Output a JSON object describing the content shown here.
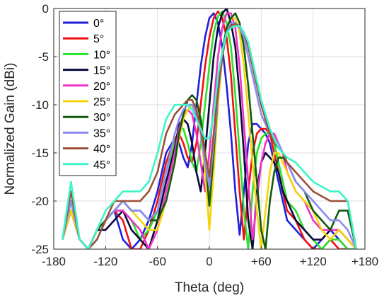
{
  "chart_data": {
    "type": "line",
    "xlabel": "Theta (deg)",
    "ylabel": "Normalized Gain (dBi)",
    "xlim": [
      -180,
      180
    ],
    "ylim": [
      -25,
      0
    ],
    "x_ticks": [
      {
        "value": -180,
        "label": "-180"
      },
      {
        "value": -120,
        "label": "-120"
      },
      {
        "value": -60,
        "label": "-60"
      },
      {
        "value": 0,
        "label": "0"
      },
      {
        "value": 60,
        "label": "+60"
      },
      {
        "value": 120,
        "label": "+120"
      },
      {
        "value": 180,
        "label": "+180"
      }
    ],
    "y_ticks": [
      {
        "value": 0,
        "label": "0"
      },
      {
        "value": -5,
        "label": "-5"
      },
      {
        "value": -10,
        "label": "-10"
      },
      {
        "value": -15,
        "label": "-15"
      },
      {
        "value": -20,
        "label": "-20"
      },
      {
        "value": -25,
        "label": "-25"
      }
    ],
    "grid": true,
    "legend_position": "top-left",
    "series": [
      {
        "name": "0°",
        "color": "#1f1fdc",
        "x": [
          -170,
          -160,
          -150,
          -140,
          -130,
          -120,
          -110,
          -100,
          -90,
          -80,
          -70,
          -60,
          -50,
          -40,
          -35,
          -30,
          -25,
          -20,
          -15,
          -10,
          -5,
          0,
          5,
          10,
          15,
          20,
          25,
          30,
          35,
          40,
          45,
          50,
          55,
          60,
          65,
          70,
          75,
          80,
          85,
          90,
          100,
          110,
          120,
          130,
          140,
          150,
          160,
          170
        ],
        "y": [
          -24,
          -21,
          -24,
          -25,
          -23,
          -22,
          -21,
          -24,
          -25,
          -24,
          -22,
          -19,
          -15,
          -13.5,
          -14,
          -15.5,
          -16.5,
          -14,
          -10,
          -6,
          -3,
          -1,
          -0.5,
          -1.5,
          -4,
          -8,
          -13,
          -19,
          -23.5,
          -19,
          -14,
          -12,
          -12,
          -12.5,
          -13,
          -14,
          -16,
          -18,
          -20,
          -22,
          -23,
          -24,
          -25,
          -24,
          -23,
          -24,
          -25,
          -25
        ]
      },
      {
        "name": "5°",
        "color": "#f01010",
        "x": [
          -170,
          -160,
          -150,
          -140,
          -130,
          -120,
          -110,
          -100,
          -90,
          -80,
          -70,
          -60,
          -50,
          -40,
          -35,
          -30,
          -25,
          -20,
          -15,
          -10,
          -5,
          0,
          5,
          10,
          15,
          20,
          25,
          30,
          35,
          40,
          45,
          50,
          55,
          60,
          65,
          70,
          75,
          80,
          85,
          90,
          100,
          110,
          120,
          130,
          140,
          150,
          160,
          170
        ],
        "y": [
          -24,
          -21,
          -24,
          -25,
          -23,
          -22,
          -21,
          -22,
          -25,
          -25,
          -23,
          -20,
          -16,
          -13.5,
          -13,
          -14,
          -15.5,
          -16,
          -14,
          -10,
          -6,
          -3,
          -1,
          -0.3,
          -1,
          -3,
          -7,
          -13,
          -19,
          -24,
          -19,
          -15,
          -13,
          -12.5,
          -12.5,
          -13,
          -15,
          -17,
          -19,
          -21,
          -22,
          -24,
          -25,
          -25,
          -24,
          -25,
          -25,
          -25
        ]
      },
      {
        "name": "10°",
        "color": "#2ce02c",
        "x": [
          -170,
          -160,
          -150,
          -140,
          -130,
          -120,
          -110,
          -100,
          -90,
          -80,
          -70,
          -60,
          -50,
          -40,
          -35,
          -30,
          -25,
          -20,
          -15,
          -10,
          -5,
          0,
          5,
          10,
          15,
          20,
          25,
          30,
          35,
          40,
          45,
          50,
          55,
          60,
          65,
          70,
          75,
          80,
          85,
          90,
          100,
          110,
          120,
          130,
          140,
          150,
          160,
          170
        ],
        "y": [
          -24,
          -21,
          -24,
          -25,
          -23,
          -22,
          -21,
          -21,
          -22,
          -24,
          -23,
          -21,
          -17,
          -14,
          -12.5,
          -12.5,
          -14,
          -16,
          -17,
          -14,
          -10,
          -6,
          -2.5,
          -0.8,
          -0.3,
          -1.5,
          -4,
          -9,
          -15,
          -21,
          -25,
          -19,
          -15,
          -13.5,
          -13,
          -13,
          -14,
          -16,
          -18,
          -20,
          -21,
          -23,
          -24,
          -25,
          -24,
          -24,
          -25,
          -25
        ]
      },
      {
        "name": "15°",
        "color": "#0a0a3c",
        "x": [
          -170,
          -160,
          -150,
          -140,
          -130,
          -120,
          -110,
          -100,
          -90,
          -80,
          -70,
          -60,
          -50,
          -40,
          -35,
          -30,
          -25,
          -20,
          -15,
          -10,
          -5,
          0,
          5,
          10,
          15,
          20,
          25,
          30,
          35,
          40,
          45,
          50,
          55,
          60,
          65,
          70,
          75,
          80,
          85,
          90,
          100,
          110,
          120,
          130,
          140,
          150,
          160,
          170
        ],
        "y": [
          -24,
          -21,
          -24,
          -25,
          -23,
          -23,
          -22,
          -21,
          -23,
          -24,
          -25,
          -22,
          -18,
          -14.5,
          -12,
          -11.5,
          -12,
          -14,
          -17,
          -19,
          -15,
          -10,
          -5,
          -2,
          -0.5,
          0,
          -1.5,
          -4,
          -9,
          -15,
          -22,
          -25,
          -19,
          -16,
          -15,
          -15.5,
          -16,
          -17,
          -19,
          -20,
          -22,
          -23,
          -24,
          -24,
          -23,
          -23,
          -24,
          -25
        ]
      },
      {
        "name": "20°",
        "color": "#f032c8",
        "x": [
          -170,
          -160,
          -150,
          -140,
          -130,
          -120,
          -110,
          -100,
          -90,
          -80,
          -70,
          -60,
          -50,
          -40,
          -35,
          -30,
          -25,
          -20,
          -15,
          -10,
          -5,
          0,
          5,
          10,
          15,
          20,
          25,
          30,
          35,
          40,
          45,
          50,
          55,
          60,
          65,
          70,
          75,
          80,
          85,
          90,
          100,
          110,
          120,
          130,
          140,
          150,
          160,
          170
        ],
        "y": [
          -24,
          -21,
          -24,
          -25,
          -23,
          -22,
          -21,
          -21,
          -22,
          -23,
          -25,
          -23,
          -19,
          -15,
          -12.5,
          -11,
          -10.5,
          -11,
          -13,
          -16,
          -19,
          -15,
          -10,
          -5,
          -2,
          -0.5,
          -0.5,
          -2,
          -6,
          -12,
          -18,
          -24,
          -20,
          -16,
          -14,
          -13,
          -13,
          -14,
          -15,
          -17,
          -19,
          -20,
          -22,
          -23,
          -23,
          -23,
          -24,
          -25
        ]
      },
      {
        "name": "25°",
        "color": "#f5d50a",
        "x": [
          -170,
          -160,
          -150,
          -140,
          -130,
          -120,
          -110,
          -100,
          -90,
          -80,
          -70,
          -60,
          -50,
          -40,
          -35,
          -30,
          -25,
          -20,
          -15,
          -10,
          -5,
          0,
          5,
          10,
          15,
          20,
          25,
          30,
          35,
          40,
          45,
          50,
          55,
          60,
          65,
          70,
          75,
          80,
          85,
          90,
          100,
          110,
          120,
          130,
          140,
          150,
          160,
          170
        ],
        "y": [
          -24,
          -21,
          -24,
          -25,
          -23,
          -22,
          -21,
          -20,
          -21,
          -22,
          -23,
          -23,
          -20,
          -16,
          -13.5,
          -11.5,
          -10.5,
          -10,
          -10.5,
          -13,
          -17,
          -23,
          -17,
          -10,
          -5,
          -2,
          -1,
          -1,
          -2.5,
          -6,
          -11,
          -16,
          -21,
          -25,
          -21,
          -17,
          -15,
          -15,
          -16,
          -17,
          -19,
          -20,
          -21,
          -23,
          -24,
          -23,
          -24,
          -25
        ]
      },
      {
        "name": "30°",
        "color": "#0f5a0f",
        "x": [
          -170,
          -160,
          -150,
          -140,
          -130,
          -120,
          -110,
          -100,
          -90,
          -80,
          -70,
          -60,
          -50,
          -40,
          -35,
          -30,
          -25,
          -20,
          -15,
          -10,
          -5,
          0,
          5,
          10,
          15,
          20,
          25,
          30,
          35,
          40,
          45,
          50,
          55,
          60,
          65,
          70,
          75,
          80,
          85,
          90,
          100,
          110,
          120,
          130,
          140,
          150,
          160,
          170
        ],
        "y": [
          -24,
          -20,
          -24,
          -25,
          -23,
          -22,
          -21,
          -20,
          -21,
          -21,
          -22,
          -22,
          -20,
          -16,
          -13,
          -11,
          -9.5,
          -9,
          -9.5,
          -11.5,
          -15,
          -20.5,
          -15,
          -9,
          -4.5,
          -2,
          -1,
          -0.5,
          -1.5,
          -4,
          -8,
          -13,
          -18,
          -23,
          -25,
          -20,
          -17,
          -15.5,
          -15.5,
          -16,
          -18,
          -19,
          -21,
          -22,
          -23,
          -21,
          -21,
          -25
        ]
      },
      {
        "name": "35°",
        "color": "#8c8cf0",
        "x": [
          -170,
          -160,
          -150,
          -140,
          -130,
          -120,
          -110,
          -100,
          -90,
          -80,
          -70,
          -60,
          -50,
          -40,
          -35,
          -30,
          -25,
          -20,
          -15,
          -10,
          -5,
          0,
          5,
          10,
          15,
          20,
          25,
          30,
          35,
          40,
          45,
          50,
          55,
          60,
          65,
          70,
          75,
          80,
          85,
          90,
          100,
          110,
          120,
          130,
          140,
          150,
          160,
          170
        ],
        "y": [
          -24,
          -20,
          -24,
          -25,
          -24,
          -22,
          -21,
          -20,
          -21,
          -21,
          -22,
          -21,
          -17,
          -13,
          -11.5,
          -10.5,
          -10,
          -10,
          -11,
          -13,
          -16,
          -18.5,
          -14,
          -9,
          -5,
          -2.5,
          -1.5,
          -1.5,
          -2,
          -3,
          -5,
          -7,
          -9,
          -11,
          -12,
          -13,
          -13.5,
          -14,
          -15,
          -16,
          -18,
          -19,
          -20,
          -21,
          -22,
          -22,
          -23,
          -25
        ]
      },
      {
        "name": "40°",
        "color": "#9c5038",
        "x": [
          -170,
          -160,
          -150,
          -140,
          -130,
          -120,
          -110,
          -100,
          -90,
          -80,
          -70,
          -60,
          -50,
          -40,
          -35,
          -30,
          -25,
          -20,
          -15,
          -10,
          -5,
          0,
          5,
          10,
          15,
          20,
          25,
          30,
          35,
          40,
          45,
          50,
          55,
          60,
          65,
          70,
          75,
          80,
          85,
          90,
          100,
          110,
          120,
          130,
          140,
          150,
          160,
          170
        ],
        "y": [
          -24,
          -19,
          -24,
          -25,
          -24,
          -22,
          -20,
          -20,
          -20,
          -20,
          -19,
          -17,
          -13,
          -11,
          -10.5,
          -10,
          -9.5,
          -9.5,
          -10.5,
          -12.5,
          -15,
          -17.5,
          -13,
          -8.5,
          -5,
          -2.5,
          -1.8,
          -1.6,
          -1.8,
          -2.5,
          -4,
          -6,
          -8,
          -10,
          -11.5,
          -13,
          -14,
          -14.5,
          -15,
          -16,
          -17,
          -18,
          -19,
          -19.5,
          -20,
          -20,
          -20,
          -25
        ]
      },
      {
        "name": "45°",
        "color": "#3cf5c8",
        "x": [
          -170,
          -160,
          -150,
          -140,
          -130,
          -120,
          -110,
          -100,
          -90,
          -80,
          -70,
          -60,
          -50,
          -40,
          -35,
          -30,
          -25,
          -20,
          -15,
          -10,
          -5,
          0,
          5,
          10,
          15,
          20,
          25,
          30,
          35,
          40,
          45,
          50,
          55,
          60,
          65,
          70,
          75,
          80,
          85,
          90,
          100,
          110,
          120,
          130,
          140,
          150,
          160,
          170
        ],
        "y": [
          -24,
          -18,
          -24,
          -25,
          -23,
          -21,
          -20,
          -19,
          -19,
          -19,
          -18,
          -15,
          -11.5,
          -10,
          -10,
          -10,
          -10,
          -10.5,
          -11.5,
          -12.5,
          -13.5,
          -13.5,
          -11,
          -7,
          -4.5,
          -2.5,
          -2,
          -1.8,
          -1.8,
          -2.5,
          -3.5,
          -5.5,
          -7.5,
          -9.5,
          -11,
          -12.5,
          -13.5,
          -14.5,
          -15,
          -15.5,
          -16,
          -17,
          -18,
          -18.5,
          -19,
          -19,
          -20,
          -25
        ]
      }
    ]
  }
}
